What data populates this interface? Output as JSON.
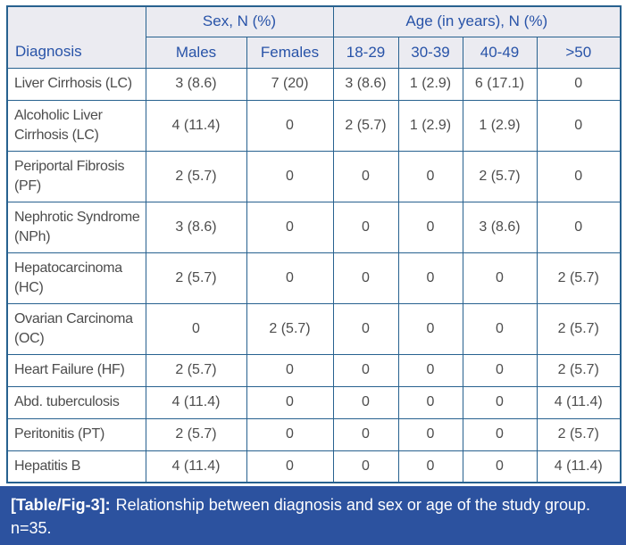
{
  "colors": {
    "border": "#27618f",
    "header_bg": "#ebebf1",
    "header_text": "#2853a8",
    "body_text": "#4d4d4d",
    "caption_bg": "#2c529f",
    "caption_text": "#ffffff",
    "page_bg": "#ffffff"
  },
  "table": {
    "col_groups": [
      {
        "label": "Sex, N (%)",
        "span": 2
      },
      {
        "label": "Age (in years), N (%)",
        "span": 4
      }
    ],
    "columns": [
      "Diagnosis",
      "Males",
      "Females",
      "18-29",
      "30-39",
      "40-49",
      ">50"
    ],
    "rows": [
      {
        "diagnosis": "Liver Cirrhosis (LC)",
        "values": [
          "3 (8.6)",
          "7 (20)",
          "3 (8.6)",
          "1 (2.9)",
          "6 (17.1)",
          "0"
        ]
      },
      {
        "diagnosis": "Alcoholic Liver Cirrhosis (LC)",
        "values": [
          "4 (11.4)",
          "0",
          "2 (5.7)",
          "1 (2.9)",
          "1 (2.9)",
          "0"
        ]
      },
      {
        "diagnosis": "Periportal Fibrosis (PF)",
        "values": [
          "2 (5.7)",
          "0",
          "0",
          "0",
          "2 (5.7)",
          "0"
        ]
      },
      {
        "diagnosis": "Nephrotic Syndrome (NPh)",
        "values": [
          "3 (8.6)",
          "0",
          "0",
          "0",
          "3 (8.6)",
          "0"
        ]
      },
      {
        "diagnosis": "Hepatocarcinoma (HC)",
        "values": [
          "2 (5.7)",
          "0",
          "0",
          "0",
          "0",
          "2 (5.7)"
        ]
      },
      {
        "diagnosis": "Ovarian Carcinoma (OC)",
        "values": [
          "0",
          "2 (5.7)",
          "0",
          "0",
          "0",
          "2 (5.7)"
        ]
      },
      {
        "diagnosis": "Heart Failure (HF)",
        "values": [
          "2 (5.7)",
          "0",
          "0",
          "0",
          "0",
          "2 (5.7)"
        ]
      },
      {
        "diagnosis": "Abd. tuberculosis",
        "values": [
          "4 (11.4)",
          "0",
          "0",
          "0",
          "0",
          "4 (11.4)"
        ]
      },
      {
        "diagnosis": "Peritonitis (PT)",
        "values": [
          "2 (5.7)",
          "0",
          "0",
          "0",
          "0",
          "2 (5.7)"
        ]
      },
      {
        "diagnosis": "Hepatitis B",
        "values": [
          "4 (11.4)",
          "0",
          "0",
          "0",
          "0",
          "4 (11.4)"
        ]
      }
    ]
  },
  "caption": {
    "label": "[Table/Fig-3]:",
    "text": "Relationship between diagnosis and sex or age of the study group.",
    "note": "n=35."
  }
}
